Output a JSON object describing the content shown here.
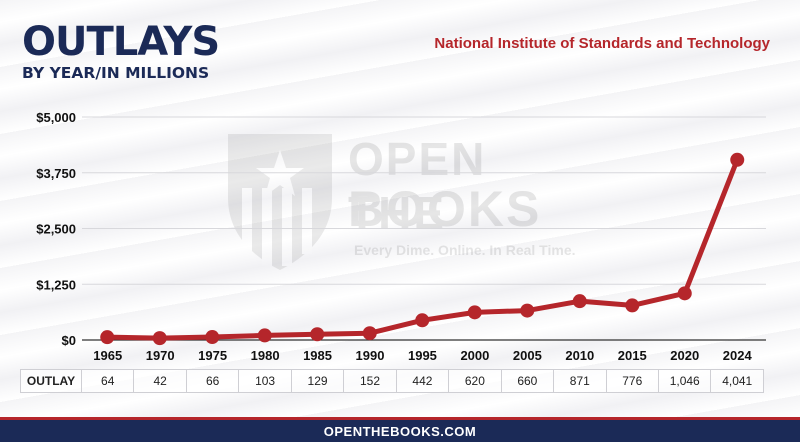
{
  "header": {
    "title": "OUTLAYS",
    "subtitle": "BY YEAR/IN MILLIONS",
    "agency": "National Institute of Standards and Technology"
  },
  "watermark": {
    "line1": "OPEN THE",
    "line2": "BOOKS",
    "tagline": "Every Dime. Online. In Real Time."
  },
  "table": {
    "row_label": "OUTLAY"
  },
  "footer": {
    "url": "OPENTHEBOOKS.COM"
  },
  "colors": {
    "line": "#b5262b",
    "title": "#1b2a57",
    "footer": "#1b2a57",
    "agency": "#b5262b"
  },
  "chart_data": {
    "type": "line",
    "title": "OUTLAYS",
    "subtitle": "BY YEAR/IN MILLIONS",
    "x": [
      "1965",
      "1970",
      "1975",
      "1980",
      "1985",
      "1990",
      "1995",
      "2000",
      "2005",
      "2010",
      "2015",
      "2020",
      "2024"
    ],
    "y": [
      64,
      42,
      66,
      103,
      129,
      152,
      442,
      620,
      660,
      871,
      776,
      1046,
      4041
    ],
    "value_labels": [
      "64",
      "42",
      "66",
      "103",
      "129",
      "152",
      "442",
      "620",
      "660",
      "871",
      "776",
      "1,046",
      "4,041"
    ],
    "ylim": [
      0,
      5000
    ],
    "yticks": [
      0,
      1250,
      2500,
      3750,
      5000
    ],
    "ytick_labels": [
      "$0",
      "$1,250",
      "$2,500",
      "$3,750",
      "$5,000"
    ],
    "grid": true,
    "legend": "none"
  }
}
